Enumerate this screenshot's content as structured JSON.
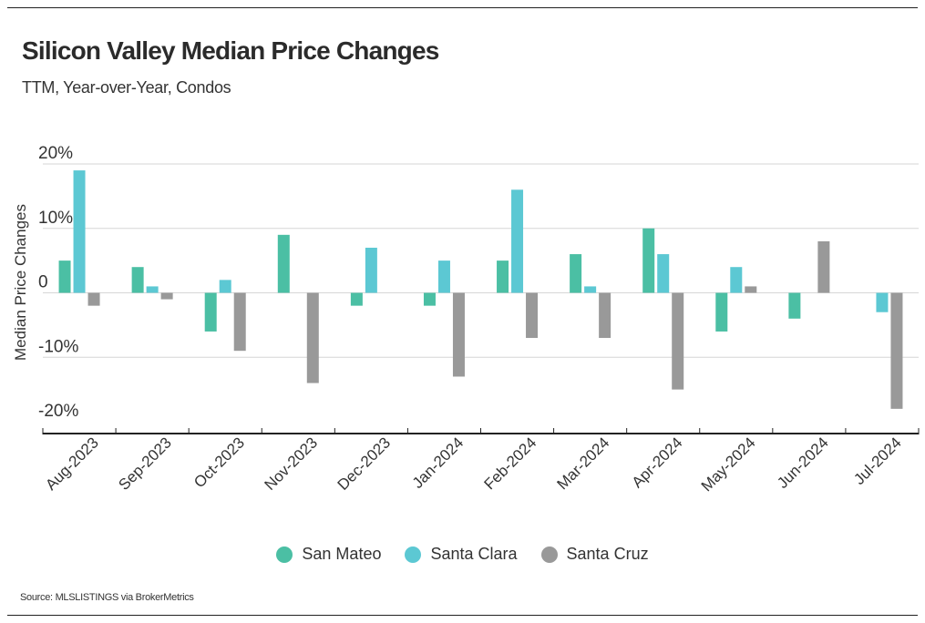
{
  "header": {
    "title": "Silicon Valley Median Price Changes",
    "subtitle": "TTM, Year-over-Year, Condos"
  },
  "footer": {
    "source": "Source:  MLSLISTINGS via BrokerMetrics"
  },
  "chart_data": {
    "type": "bar",
    "ylabel": "Median Price Changes",
    "xlabel": "",
    "ylim": [
      -20,
      20
    ],
    "yticks": [
      20,
      10,
      0,
      -10,
      -20
    ],
    "ytick_labels": [
      "20%",
      "10%",
      "0",
      "-10%",
      "-20%"
    ],
    "grid": true,
    "legend_position": "bottom",
    "categories": [
      "Aug-2023",
      "Sep-2023",
      "Oct-2023",
      "Nov-2023",
      "Dec-2023",
      "Jan-2024",
      "Feb-2024",
      "Mar-2024",
      "Apr-2024",
      "May-2024",
      "Jun-2024",
      "Jul-2024"
    ],
    "series": [
      {
        "name": "San Mateo",
        "color": "#4bbfa4",
        "values": [
          5,
          4,
          -6,
          9,
          -2,
          -2,
          5,
          6,
          10,
          -6,
          -4,
          null
        ]
      },
      {
        "name": "Santa Clara",
        "color": "#5cc8d3",
        "values": [
          19,
          1,
          2,
          null,
          7,
          5,
          16,
          1,
          6,
          4,
          null,
          -3
        ]
      },
      {
        "name": "Santa Cruz",
        "color": "#999999",
        "values": [
          -2,
          -1,
          -9,
          -14,
          null,
          -13,
          -7,
          -7,
          -15,
          1,
          8,
          -18
        ]
      }
    ]
  }
}
